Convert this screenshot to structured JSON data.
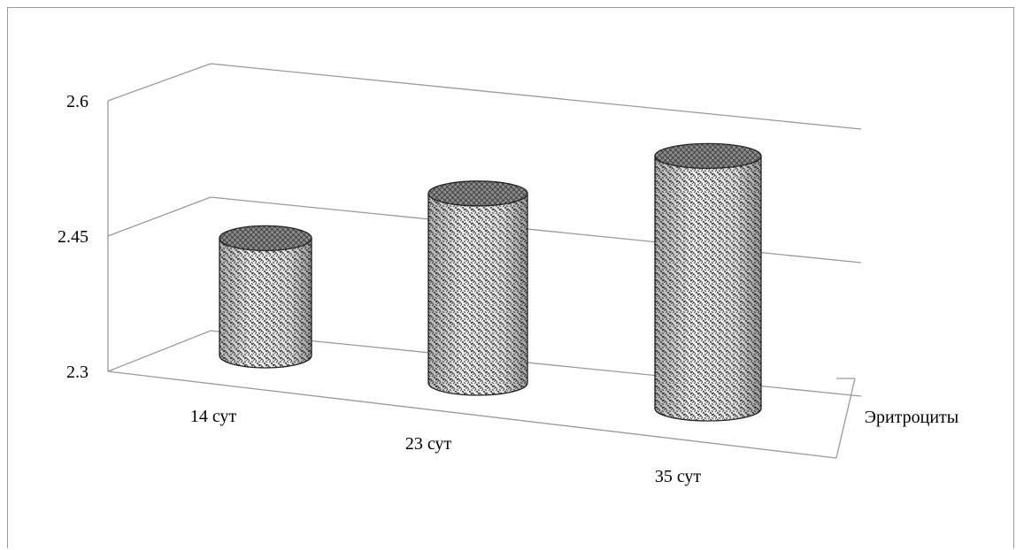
{
  "chart_data": {
    "type": "bar",
    "title": "",
    "categories": [
      "14 сут",
      "23 сут",
      "35 сут"
    ],
    "series": [
      {
        "name": "Эритроциты",
        "values": [
          2.43,
          2.51,
          2.58
        ]
      }
    ],
    "ylim": [
      2.3,
      2.6
    ],
    "yticks": [
      "2.3",
      "2.45",
      "2.6"
    ],
    "grid": true,
    "legend": "none",
    "style": "3d-cylinder"
  }
}
